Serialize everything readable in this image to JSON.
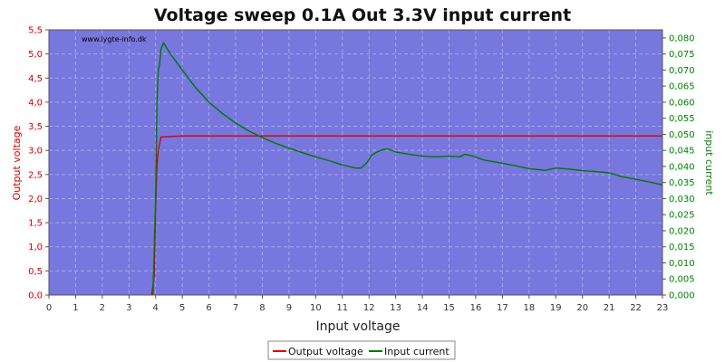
{
  "chart_data": {
    "type": "line",
    "title": "Voltage sweep 0.1A Out 3.3V input current",
    "watermark": "www.lygte-info.dk",
    "xlabel": "Input voltage",
    "ylabel_left": "Output voltage",
    "ylabel_right": "input current",
    "xlim": [
      0,
      23
    ],
    "ylim_left": [
      0,
      5.5
    ],
    "ylim_right": [
      0,
      0.0825
    ],
    "x_ticks": [
      "0",
      "1",
      "2",
      "3",
      "4",
      "5",
      "6",
      "7",
      "8",
      "9",
      "10",
      "11",
      "12",
      "13",
      "14",
      "15",
      "16",
      "17",
      "18",
      "19",
      "20",
      "21",
      "22",
      "23"
    ],
    "y_left_ticks": [
      "0,0",
      "0,5",
      "1,0",
      "1,5",
      "2,0",
      "2,5",
      "3,0",
      "3,5",
      "4,0",
      "4,5",
      "5,0",
      "5,5"
    ],
    "y_right_ticks": [
      "0,000",
      "0,005",
      "0,010",
      "0,015",
      "0,020",
      "0,025",
      "0,030",
      "0,035",
      "0,040",
      "0,045",
      "0,050",
      "0,055",
      "0,060",
      "0,065",
      "0,070",
      "0,075",
      "0,080"
    ],
    "grid": true,
    "legend_position": "bottom-center",
    "colors": {
      "plot_bg": "#7777dd",
      "grid": "#a8a8ee",
      "left_axis": "#cc0000",
      "right_axis": "#008000"
    },
    "series": [
      {
        "name": "Output voltage",
        "axis": "left",
        "color": "#dd0000",
        "points": [
          [
            3.85,
            0.0
          ],
          [
            3.95,
            0.4
          ],
          [
            4.0,
            1.8
          ],
          [
            4.05,
            2.7
          ],
          [
            4.1,
            3.0
          ],
          [
            4.2,
            3.28
          ],
          [
            5.0,
            3.3
          ],
          [
            23.0,
            3.3
          ]
        ]
      },
      {
        "name": "Input current",
        "axis": "right",
        "color": "#007700",
        "points": [
          [
            3.9,
            0.0
          ],
          [
            4.0,
            0.03
          ],
          [
            4.05,
            0.06
          ],
          [
            4.1,
            0.07
          ],
          [
            4.15,
            0.072
          ],
          [
            4.2,
            0.0765
          ],
          [
            4.3,
            0.0785
          ],
          [
            4.4,
            0.077
          ],
          [
            4.6,
            0.0745
          ],
          [
            5.0,
            0.07
          ],
          [
            5.5,
            0.0645
          ],
          [
            6.0,
            0.06
          ],
          [
            6.5,
            0.0565
          ],
          [
            7.0,
            0.0535
          ],
          [
            7.5,
            0.051
          ],
          [
            8.0,
            0.049
          ],
          [
            8.5,
            0.0472
          ],
          [
            9.0,
            0.0457
          ],
          [
            9.5,
            0.0443
          ],
          [
            10.0,
            0.043
          ],
          [
            10.5,
            0.0418
          ],
          [
            11.0,
            0.0405
          ],
          [
            11.5,
            0.0395
          ],
          [
            11.7,
            0.0395
          ],
          [
            11.9,
            0.041
          ],
          [
            12.1,
            0.0435
          ],
          [
            12.3,
            0.0445
          ],
          [
            12.5,
            0.0452
          ],
          [
            12.7,
            0.0455
          ],
          [
            13.0,
            0.0445
          ],
          [
            13.5,
            0.0438
          ],
          [
            14.0,
            0.0432
          ],
          [
            14.5,
            0.043
          ],
          [
            15.0,
            0.0432
          ],
          [
            15.4,
            0.043
          ],
          [
            15.6,
            0.0438
          ],
          [
            15.9,
            0.0432
          ],
          [
            16.3,
            0.042
          ],
          [
            16.8,
            0.0413
          ],
          [
            17.5,
            0.0402
          ],
          [
            18.0,
            0.0393
          ],
          [
            18.6,
            0.0388
          ],
          [
            19.0,
            0.0395
          ],
          [
            19.5,
            0.0392
          ],
          [
            20.0,
            0.0387
          ],
          [
            20.5,
            0.0384
          ],
          [
            21.0,
            0.038
          ],
          [
            21.5,
            0.0368
          ],
          [
            22.0,
            0.036
          ],
          [
            22.5,
            0.0352
          ],
          [
            23.0,
            0.0343
          ]
        ]
      }
    ]
  }
}
